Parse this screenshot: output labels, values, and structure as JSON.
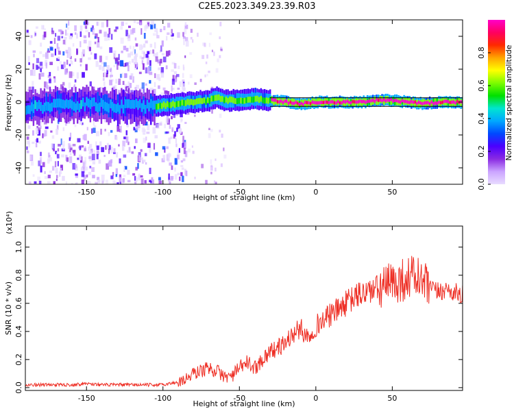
{
  "title": "C2E5.2023.349.23.39.R03",
  "colors": {
    "snr_line": "#ee2e24",
    "axes": "#000000",
    "colorbar_stops": [
      "#e8dcff",
      "#cba4ff",
      "#8a2be2",
      "#4b00ff",
      "#0048ff",
      "#00a8ff",
      "#00e5d0",
      "#00e000",
      "#7cfc00",
      "#ffff00",
      "#ffa500",
      "#ff2a00",
      "#ff0060",
      "#ff00c8"
    ]
  },
  "chart_data": [
    {
      "type": "heatmap",
      "title": "C2E5.2023.349.23.39.R03",
      "xlabel": "Height of straight line (km)",
      "ylabel": "Frequency (Hz)",
      "xlim": [
        -190,
        96
      ],
      "ylim": [
        -50,
        50
      ],
      "xticks": [
        -150,
        -100,
        -50,
        0,
        50
      ],
      "yticks": [
        -40,
        -20,
        0,
        20,
        40
      ],
      "colorbar": {
        "label": "Normalized spectral amplitude",
        "range": [
          0,
          1
        ],
        "ticks": [
          "0.0",
          "0.2",
          "0.4",
          "0.6",
          "0.8"
        ]
      },
      "spectral_ridge": [
        {
          "x": -190,
          "y": -4
        },
        {
          "x": -180,
          "y": -3
        },
        {
          "x": -170,
          "y": -1
        },
        {
          "x": -160,
          "y": -2
        },
        {
          "x": -150,
          "y": -1
        },
        {
          "x": -140,
          "y": -2
        },
        {
          "x": -130,
          "y": -3
        },
        {
          "x": -120,
          "y": -2
        },
        {
          "x": -110,
          "y": -3
        },
        {
          "x": -100,
          "y": -2
        },
        {
          "x": -90,
          "y": -1
        },
        {
          "x": -80,
          "y": 0
        },
        {
          "x": -70,
          "y": 1
        },
        {
          "x": -65,
          "y": 3
        },
        {
          "x": -60,
          "y": 1
        },
        {
          "x": -50,
          "y": 1
        },
        {
          "x": -40,
          "y": 2
        },
        {
          "x": -30,
          "y": 1
        },
        {
          "x": -20,
          "y": 0
        },
        {
          "x": -10,
          "y": -1
        },
        {
          "x": 0,
          "y": 0
        },
        {
          "x": 10,
          "y": 0
        },
        {
          "x": 20,
          "y": 0
        },
        {
          "x": 30,
          "y": 0
        },
        {
          "x": 40,
          "y": 1
        },
        {
          "x": 50,
          "y": 1
        },
        {
          "x": 60,
          "y": 0
        },
        {
          "x": 70,
          "y": -1
        },
        {
          "x": 80,
          "y": 0
        },
        {
          "x": 90,
          "y": 0
        }
      ]
    },
    {
      "type": "line",
      "xlabel": "Height of straight line (km)",
      "ylabel": "SNR (10 * v/v)",
      "y_multiplier": "(x10⁴)",
      "xlim": [
        -190,
        96
      ],
      "ylim": [
        -0.02,
        1.15
      ],
      "xticks": [
        -150,
        -100,
        -50,
        0,
        50
      ],
      "yticks": [
        "0.0",
        "0.2",
        "0.4",
        "0.6",
        "0.8",
        "1.0"
      ],
      "series": [
        {
          "x": [
            -190,
            -180,
            -170,
            -160,
            -150,
            -140,
            -130,
            -120,
            -110,
            -100,
            -90,
            -85,
            -80,
            -75,
            -70,
            -65,
            -60,
            -55,
            -50,
            -45,
            -40,
            -35,
            -30,
            -25,
            -20,
            -15,
            -10,
            -5,
            0,
            5,
            10,
            15,
            20,
            25,
            30,
            35,
            40,
            45,
            50,
            55,
            60,
            65,
            70,
            75,
            80,
            85,
            90,
            96
          ],
          "values": [
            0.02,
            0.02,
            0.02,
            0.02,
            0.03,
            0.02,
            0.02,
            0.02,
            0.02,
            0.02,
            0.04,
            0.06,
            0.1,
            0.12,
            0.14,
            0.12,
            0.08,
            0.08,
            0.14,
            0.18,
            0.14,
            0.2,
            0.26,
            0.28,
            0.32,
            0.38,
            0.42,
            0.36,
            0.44,
            0.48,
            0.52,
            0.56,
            0.6,
            0.64,
            0.67,
            0.69,
            0.7,
            0.72,
            0.74,
            0.76,
            0.78,
            0.8,
            0.74,
            0.7,
            0.68,
            0.7,
            0.68,
            0.66
          ]
        }
      ]
    }
  ]
}
